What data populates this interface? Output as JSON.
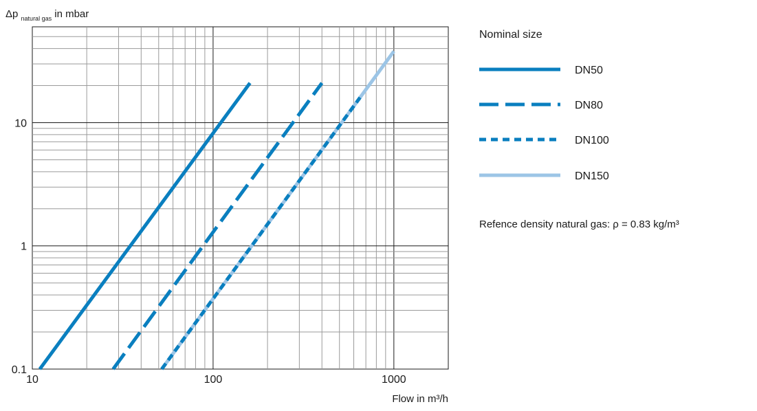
{
  "chart_data": {
    "type": "line",
    "y_scale": "log",
    "x_scale": "log",
    "xlim": [
      10,
      2000
    ],
    "ylim": [
      0.1,
      60
    ],
    "x_ticks": [
      {
        "value": 10,
        "label": "10"
      },
      {
        "value": 100,
        "label": "100"
      },
      {
        "value": 1000,
        "label": "1000"
      }
    ],
    "y_ticks": [
      {
        "value": 0.1,
        "label": "0.1"
      },
      {
        "value": 1,
        "label": "1"
      },
      {
        "value": 10,
        "label": "10"
      }
    ],
    "xlabel": "Flow in m³/h",
    "ylabel_main": "Δp",
    "ylabel_sub": "natural gas",
    "ylabel_unit": " in mbar",
    "grid": true,
    "legend_title": "Nominal size",
    "legend_position": "right",
    "series": [
      {
        "name": "DN50",
        "color": "#0a7fbf",
        "dash": "solid",
        "points": [
          [
            11,
            0.1
          ],
          [
            160,
            21
          ]
        ]
      },
      {
        "name": "DN80",
        "color": "#0a7fbf",
        "dash": "long-dash",
        "points": [
          [
            28,
            0.1
          ],
          [
            400,
            21
          ]
        ]
      },
      {
        "name": "DN100",
        "color": "#0a7fbf",
        "dash": "short-dash",
        "points": [
          [
            52,
            0.1
          ],
          [
            650,
            16
          ]
        ]
      },
      {
        "name": "DN150",
        "color": "#9cc5e6",
        "dash": "solid",
        "points": [
          [
            52,
            0.1
          ],
          [
            1000,
            38
          ]
        ]
      }
    ],
    "note": "Refence density natural gas: ρ = 0.83 kg/m³"
  }
}
